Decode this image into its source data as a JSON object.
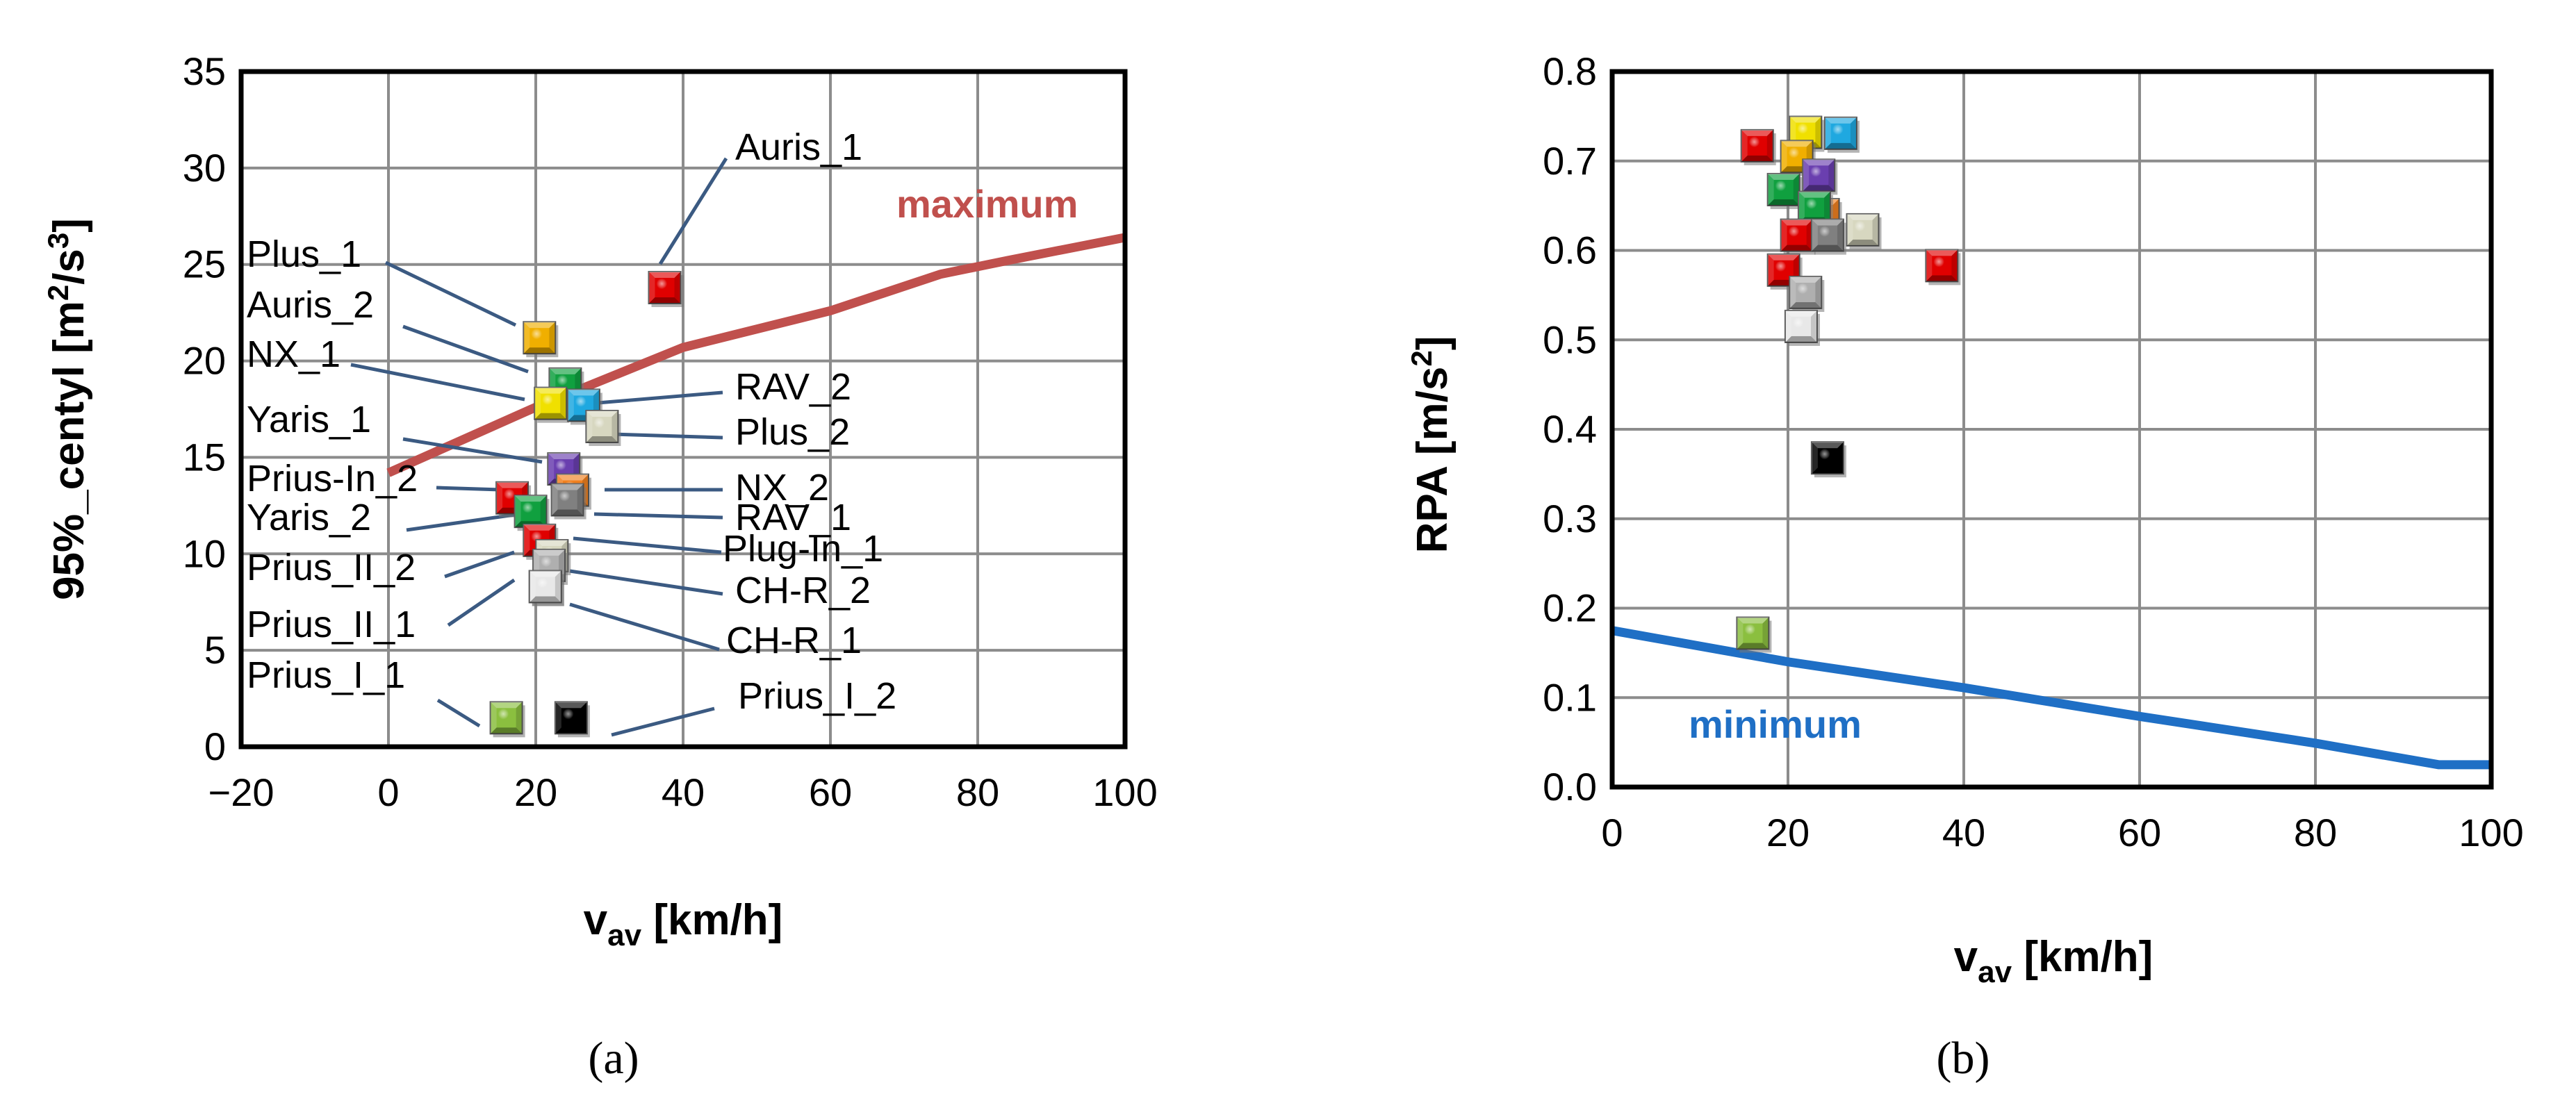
{
  "chart_data": [
    {
      "type": "scatter",
      "panel": "a",
      "caption": "(a)",
      "xlabel_main": "v",
      "xlabel_sub": "av",
      "xlabel_unit": " [km/h]",
      "ylabel_main": "95%_centyl [m",
      "ylabel_sup1": "2",
      "ylabel_mid": "/s",
      "ylabel_sup2": "3",
      "ylabel_end": "]",
      "xlim": [
        -20,
        100
      ],
      "ylim": [
        0,
        35
      ],
      "xticks": [
        -20,
        0,
        20,
        40,
        60,
        80,
        100
      ],
      "xtick_labels": [
        "−20",
        "0",
        "20",
        "40",
        "60",
        "80",
        "100"
      ],
      "yticks": [
        0,
        5,
        10,
        15,
        20,
        25,
        30,
        35
      ],
      "ytick_labels": [
        "0",
        "5",
        "10",
        "15",
        "20",
        "25",
        "30",
        "35"
      ],
      "grid": true,
      "curve": {
        "name": "maximum",
        "color": "#c0504d",
        "x": [
          0,
          20,
          40,
          60,
          75,
          84,
          100
        ],
        "y": [
          14.2,
          17.6,
          20.7,
          22.6,
          24.5,
          25.2,
          26.4
        ]
      },
      "points": [
        {
          "name": "Auris_1",
          "x": 37.5,
          "y": 23.8,
          "color": "#e00000"
        },
        {
          "name": "Plus_1",
          "x": 20.5,
          "y": 21.2,
          "color": "#f0b000"
        },
        {
          "name": "Auris_2",
          "x": 24.0,
          "y": 18.8,
          "color": "#10a040"
        },
        {
          "name": "NX_1",
          "x": 22.0,
          "y": 17.8,
          "color": "#f0e000"
        },
        {
          "name": "RAV_2",
          "x": 26.5,
          "y": 17.7,
          "color": "#20a8e0"
        },
        {
          "name": "Plus_2",
          "x": 29.0,
          "y": 16.6,
          "color": "#d8d8c0"
        },
        {
          "name": "Yaris_1",
          "x": 23.8,
          "y": 14.4,
          "color": "#6a3fb0"
        },
        {
          "name": "NX_2",
          "x": 25.0,
          "y": 13.3,
          "color": "#f08020"
        },
        {
          "name": "RAV_1",
          "x": 24.3,
          "y": 12.8,
          "color": "#808080"
        },
        {
          "name": "Prius-In_2",
          "x": 16.8,
          "y": 12.9,
          "color": "#e00000"
        },
        {
          "name": "Yaris_2",
          "x": 19.3,
          "y": 12.2,
          "color": "#10a040"
        },
        {
          "name": "Prius_II_2",
          "x": 20.5,
          "y": 10.7,
          "color": "#e00000"
        },
        {
          "name": "Plug-In_1",
          "x": 22.2,
          "y": 9.9,
          "color": "#d8d8c0"
        },
        {
          "name": "CH-R_2",
          "x": 21.8,
          "y": 9.4,
          "color": "#b0b0b0"
        },
        {
          "name": "Prius_II_1",
          "x": 21.3,
          "y": 8.3,
          "color": "#e8e8e8"
        },
        {
          "name": "CH-R_1",
          "x": 21.3,
          "y": 8.3,
          "color": "#e8e8e8"
        },
        {
          "name": "Prius_I_1",
          "x": 16.0,
          "y": 1.5,
          "color": "#8bbf40"
        },
        {
          "name": "Prius_I_2",
          "x": 24.8,
          "y": 1.5,
          "color": "#000000"
        }
      ]
    },
    {
      "type": "scatter",
      "panel": "b",
      "caption": "(b)",
      "xlabel_main": "v",
      "xlabel_sub": "av",
      "xlabel_unit": " [km/h]",
      "ylabel_main": "RPA [m/s",
      "ylabel_sup1": "2",
      "ylabel_end": "]",
      "xlim": [
        0,
        100
      ],
      "ylim": [
        0,
        0.8
      ],
      "xticks": [
        0,
        20,
        40,
        60,
        80,
        100
      ],
      "xtick_labels": [
        "0",
        "20",
        "40",
        "60",
        "80",
        "100"
      ],
      "yticks": [
        0,
        0.1,
        0.2,
        0.3,
        0.4,
        0.5,
        0.6,
        0.7,
        0.8
      ],
      "ytick_labels": [
        "0.0",
        "0.1",
        "0.2",
        "0.3",
        "0.4",
        "0.5",
        "0.6",
        "0.7",
        "0.8"
      ],
      "grid": true,
      "curve": {
        "name": "minimum",
        "color": "#1f6fc5",
        "x": [
          0,
          20,
          40,
          60,
          80,
          94,
          100
        ],
        "y": [
          0.175,
          0.14,
          0.111,
          0.079,
          0.049,
          0.025,
          0.025
        ]
      },
      "points": [
        {
          "x": 16.5,
          "y": 0.717,
          "color": "#e00000"
        },
        {
          "x": 22.0,
          "y": 0.732,
          "color": "#f0e000"
        },
        {
          "x": 26.0,
          "y": 0.731,
          "color": "#20a8e0"
        },
        {
          "x": 21.0,
          "y": 0.705,
          "color": "#f0b000"
        },
        {
          "x": 23.5,
          "y": 0.684,
          "color": "#6a3fb0"
        },
        {
          "x": 19.5,
          "y": 0.668,
          "color": "#10a040"
        },
        {
          "x": 24.0,
          "y": 0.64,
          "color": "#f08020"
        },
        {
          "x": 23.0,
          "y": 0.648,
          "color": "#10a040"
        },
        {
          "x": 28.5,
          "y": 0.623,
          "color": "#d8d8c0"
        },
        {
          "x": 21.0,
          "y": 0.617,
          "color": "#e00000"
        },
        {
          "x": 24.5,
          "y": 0.617,
          "color": "#808080"
        },
        {
          "x": 37.5,
          "y": 0.583,
          "color": "#e00000"
        },
        {
          "x": 19.5,
          "y": 0.578,
          "color": "#e00000"
        },
        {
          "x": 22.0,
          "y": 0.553,
          "color": "#b0b0b0"
        },
        {
          "x": 21.5,
          "y": 0.515,
          "color": "#e8e8e8"
        },
        {
          "x": 24.5,
          "y": 0.368,
          "color": "#000000"
        },
        {
          "x": 16.0,
          "y": 0.172,
          "color": "#8bbf40"
        }
      ]
    }
  ]
}
